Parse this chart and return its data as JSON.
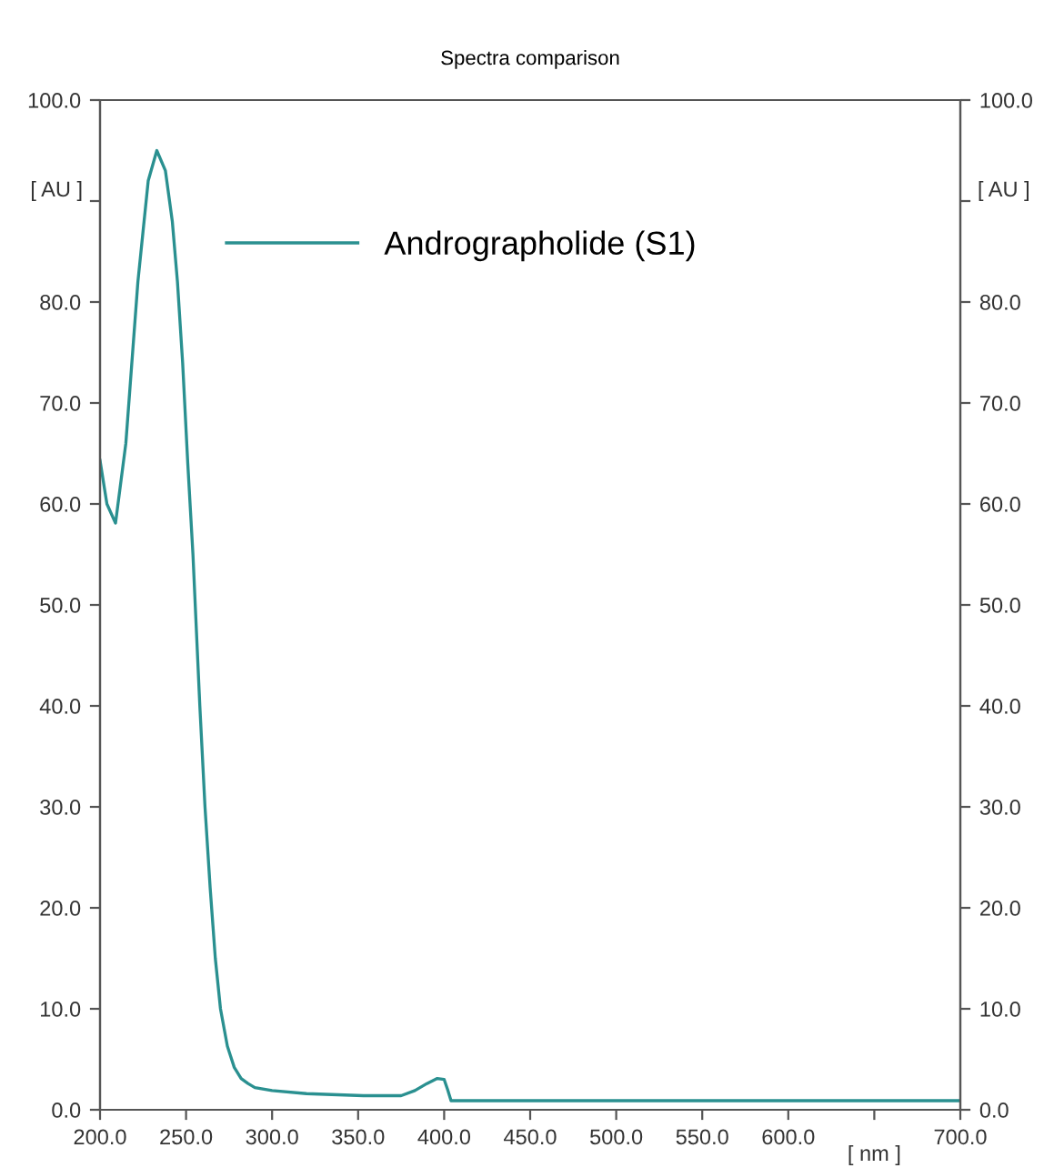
{
  "chart_data": {
    "type": "line",
    "title": "Spectra comparison",
    "xlabel": "[ nm ]",
    "ylabel": "[ AU ]",
    "y2label": "[ AU ]",
    "series": [
      {
        "name": "Andrographolide (S1)",
        "color": "#2a9090",
        "x": [
          200,
          204,
          209,
          215,
          222,
          228,
          233,
          238,
          242,
          245,
          248,
          251,
          254,
          258,
          261,
          264,
          267,
          270,
          274,
          278,
          282,
          286,
          290,
          300,
          320,
          353,
          375,
          383,
          390,
          396,
          400,
          402,
          404,
          419,
          500,
          600,
          700
        ],
        "values": [
          64.3,
          60,
          58.1,
          66,
          82,
          92,
          95,
          93,
          88,
          82,
          74,
          64,
          55,
          40,
          30,
          22,
          15,
          10,
          6.3,
          4.2,
          3.1,
          2.6,
          2.2,
          1.9,
          1.6,
          1.4,
          1.4,
          1.9,
          2.6,
          3.1,
          3.0,
          2.0,
          0.9,
          0.9,
          0.9,
          0.9,
          0.9
        ]
      }
    ],
    "xlim": [
      200,
      700
    ],
    "ylim": [
      0,
      100
    ],
    "y2lim": [
      0,
      100
    ],
    "xticks": [
      {
        "value": 200,
        "label": "200.0"
      },
      {
        "value": 250,
        "label": "250.0"
      },
      {
        "value": 300,
        "label": "300.0"
      },
      {
        "value": 350,
        "label": "350.0"
      },
      {
        "value": 400,
        "label": "400.0"
      },
      {
        "value": 450,
        "label": "450.0"
      },
      {
        "value": 500,
        "label": "500.0"
      },
      {
        "value": 550,
        "label": "550.0"
      },
      {
        "value": 600,
        "label": "600.0"
      },
      {
        "value": 650,
        "label": null
      },
      {
        "value": 700,
        "label": "700.0"
      }
    ],
    "yticks": [
      {
        "value": 0,
        "label": "0.0"
      },
      {
        "value": 10,
        "label": "10.0"
      },
      {
        "value": 20,
        "label": "20.0"
      },
      {
        "value": 30,
        "label": "30.0"
      },
      {
        "value": 40,
        "label": "40.0"
      },
      {
        "value": 50,
        "label": "50.0"
      },
      {
        "value": 60,
        "label": "60.0"
      },
      {
        "value": 70,
        "label": "70.0"
      },
      {
        "value": 80,
        "label": "80.0"
      },
      {
        "value": 90,
        "label": null
      },
      {
        "value": 100,
        "label": "100.0"
      }
    ],
    "y2ticks": [
      {
        "value": 0,
        "label": "0.0"
      },
      {
        "value": 10,
        "label": "10.0"
      },
      {
        "value": 20,
        "label": "20.0"
      },
      {
        "value": 30,
        "label": "30.0"
      },
      {
        "value": 40,
        "label": "40.0"
      },
      {
        "value": 50,
        "label": "50.0"
      },
      {
        "value": 60,
        "label": "60.0"
      },
      {
        "value": 70,
        "label": "70.0"
      },
      {
        "value": 80,
        "label": "80.0"
      },
      {
        "value": 90,
        "label": null
      },
      {
        "value": 100,
        "label": "100.0"
      }
    ],
    "legend": "top",
    "grid": false,
    "marker": "none",
    "line_style": "solid"
  }
}
